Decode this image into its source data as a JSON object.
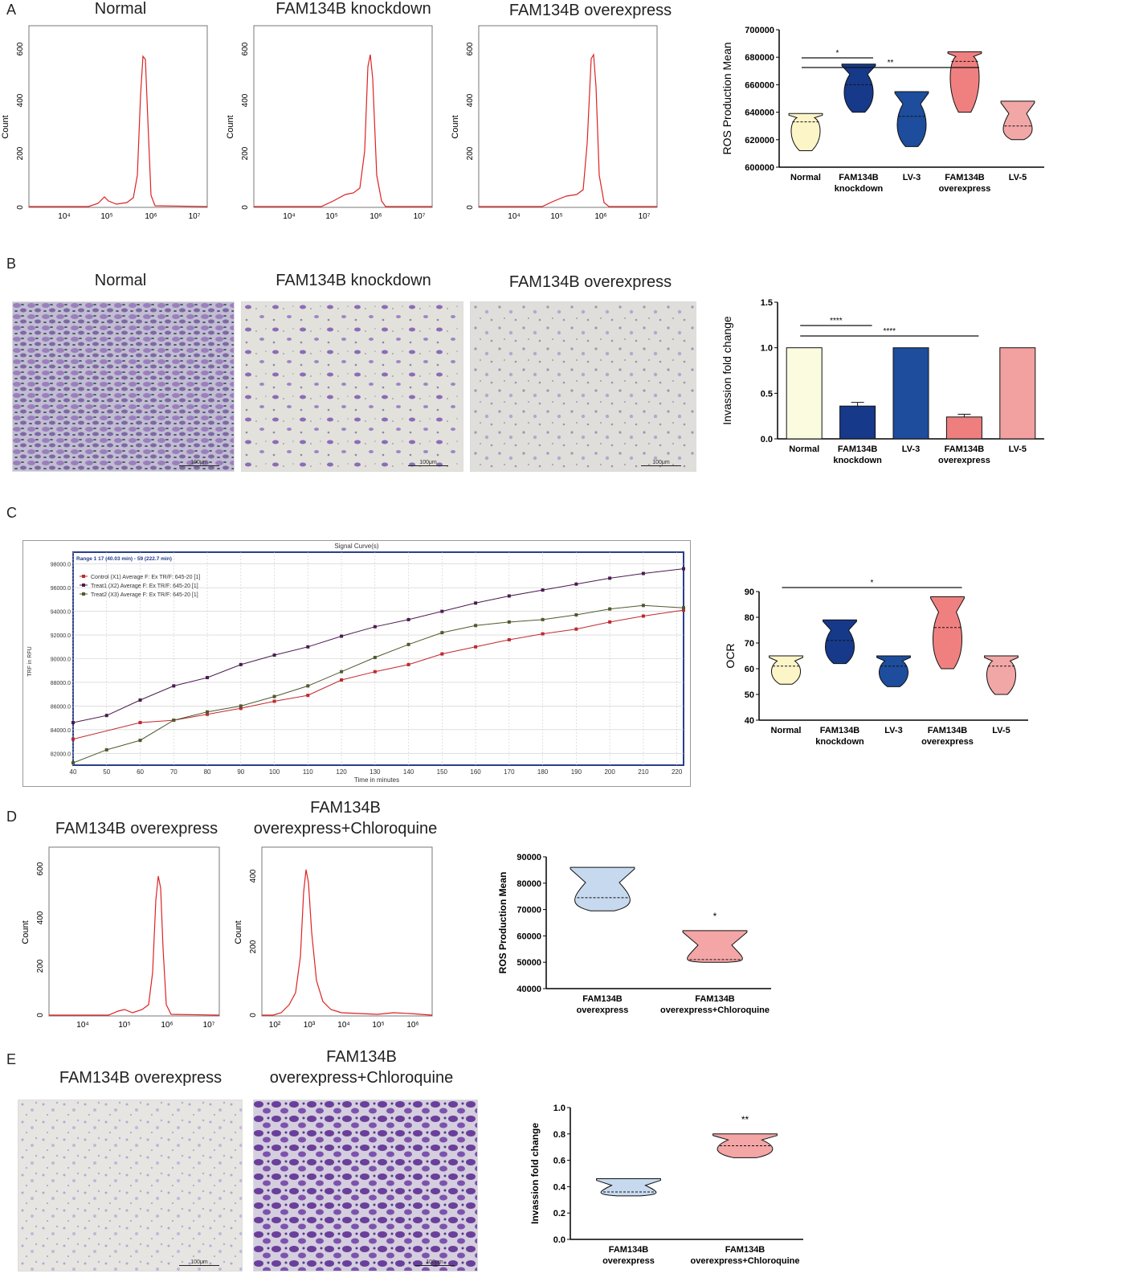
{
  "figure": {
    "panels": {
      "A": {
        "letter": "A",
        "histograms": [
          {
            "title": "Normal",
            "ylabel": "Count",
            "yticks": [
              "0",
              "200",
              "400",
              "600"
            ],
            "xticks": [
              "10⁴",
              "10⁵",
              "10⁶",
              "10⁷"
            ]
          },
          {
            "title": "FAM134B knockdown",
            "ylabel": "Count",
            "yticks": [
              "0",
              "200",
              "400",
              "600"
            ],
            "xticks": [
              "10⁴",
              "10⁵",
              "10⁶",
              "10⁷"
            ]
          },
          {
            "title": "FAM134B overexpress",
            "ylabel": "Count",
            "yticks": [
              "0",
              "200",
              "400",
              "600"
            ],
            "xticks": [
              "10⁴",
              "10⁵",
              "10⁶",
              "10⁷"
            ]
          }
        ]
      },
      "B": {
        "letter": "B",
        "images": [
          {
            "title": "Normal",
            "scale": "100μm"
          },
          {
            "title": "FAM134B knockdown",
            "scale": "100μm"
          },
          {
            "title": "FAM134B overexpress",
            "scale": "100μm"
          }
        ]
      },
      "C": {
        "letter": "C",
        "signal": {
          "title": "Signal Curve(s)",
          "range_label": "Range 1 17 (40.03 min) - 59 (222.7 min)",
          "legend": [
            "Control (X1) Average F: Ex TR/F: 645-20 [1]",
            "Treat1 (X2) Average F: Ex TR/F: 645-20 [1]",
            "Treat2 (X3) Average F: Ex TR/F: 645-20 [1]"
          ],
          "xlabel": "Time in minutes",
          "ylabel": "TRF in RFU",
          "xticks": [
            "40",
            "50",
            "60",
            "70",
            "80",
            "90",
            "100",
            "110",
            "120",
            "130",
            "140",
            "150",
            "160",
            "170",
            "180",
            "190",
            "200",
            "210",
            "220"
          ],
          "yticks": [
            "82000.0",
            "84000.0",
            "86000.0",
            "88000.0",
            "90000.0",
            "92000.0",
            "94000.0",
            "96000.0",
            "98000.0"
          ],
          "colors": {
            "control": "#c0282f",
            "treat1": "#4a1b4f",
            "treat2": "#4e5a2e"
          }
        }
      },
      "D": {
        "letter": "D",
        "histograms": [
          {
            "title": "FAM134B overexpress",
            "ylabel": "Count",
            "yticks": [
              "0",
              "200",
              "400",
              "600"
            ],
            "xticks": [
              "10⁴",
              "10⁵",
              "10⁶",
              "10⁷"
            ]
          },
          {
            "title": "FAM134B overexpress+Chloroquine",
            "ylabel": "Count",
            "yticks": [
              "0",
              "200",
              "400"
            ],
            "xticks": [
              "10²",
              "10³",
              "10⁴",
              "10⁵",
              "10⁶"
            ]
          }
        ]
      },
      "E": {
        "letter": "E",
        "images": [
          {
            "title": "FAM134B overexpress",
            "scale": "100μm"
          },
          {
            "title": "FAM134B overexpress+Chloroquine",
            "scale": "100μm"
          }
        ]
      }
    }
  },
  "chart_data": [
    {
      "id": "A-ros",
      "type": "violin",
      "ylabel": "ROS Production Mean",
      "ylim": [
        600000,
        700000
      ],
      "yticks": [
        "600000",
        "620000",
        "640000",
        "660000",
        "680000",
        "700000"
      ],
      "categories": [
        "Normal",
        "FAM134B knockdown",
        "LV-3",
        "FAM134B overexpress",
        "LV-5"
      ],
      "min": [
        612000,
        640000,
        615000,
        640000,
        620000
      ],
      "max": [
        639000,
        675000,
        655000,
        684000,
        648000
      ],
      "median": [
        633000,
        660000,
        637000,
        677000,
        630000
      ],
      "colors": [
        "#fbf5c8",
        "#17398a",
        "#1d4d9c",
        "#f08080",
        "#f2a7a7"
      ],
      "significance": [
        {
          "from": 0,
          "to": 1,
          "label": "*"
        },
        {
          "from": 0,
          "to": 3,
          "label": "**"
        }
      ]
    },
    {
      "id": "B-invasion",
      "type": "bar",
      "ylabel": "Invassion fold change",
      "ylim": [
        0,
        1.5
      ],
      "yticks": [
        "0.0",
        "0.5",
        "1.0",
        "1.5"
      ],
      "categories": [
        "Normal",
        "FAM134B knockdown",
        "LV-3",
        "FAM134B overexpress",
        "LV-5"
      ],
      "values": [
        1.0,
        0.36,
        1.0,
        0.24,
        1.0
      ],
      "errors": [
        0,
        0.04,
        0,
        0.03,
        0
      ],
      "colors": [
        "#fbfbe0",
        "#17398a",
        "#1d4d9c",
        "#ef7f7f",
        "#f2a0a0"
      ],
      "significance": [
        {
          "from": 0,
          "to": 1,
          "label": "****"
        },
        {
          "from": 0,
          "to": 3,
          "label": "****"
        }
      ]
    },
    {
      "id": "C-signal",
      "type": "line",
      "xlim": [
        40,
        222
      ],
      "ylim": [
        81000,
        99000
      ],
      "series": [
        {
          "name": "Control (X1) Average F: Ex TR/F: 645-20 [1]",
          "x": [
            40,
            60,
            70,
            80,
            90,
            100,
            110,
            120,
            130,
            140,
            150,
            160,
            170,
            180,
            190,
            200,
            210,
            222
          ],
          "values": [
            83200,
            84600,
            84800,
            85300,
            85800,
            86400,
            86900,
            88200,
            88900,
            89500,
            90400,
            91000,
            91600,
            92100,
            92500,
            93100,
            93600,
            94100
          ]
        },
        {
          "name": "Treat1 (X2) Average F: Ex TR/F: 645-20 [1]",
          "x": [
            40,
            50,
            60,
            70,
            80,
            90,
            100,
            110,
            120,
            130,
            140,
            150,
            160,
            170,
            180,
            190,
            200,
            210,
            222
          ],
          "values": [
            84600,
            85200,
            86500,
            87700,
            88400,
            89500,
            90300,
            91000,
            91900,
            92700,
            93300,
            94000,
            94700,
            95300,
            95800,
            96300,
            96800,
            97200,
            97600
          ]
        },
        {
          "name": "Treat2 (X3) Average F: Ex TR/F: 645-20 [1]",
          "x": [
            40,
            50,
            60,
            70,
            80,
            90,
            100,
            110,
            120,
            130,
            140,
            150,
            160,
            170,
            180,
            190,
            200,
            210,
            222
          ],
          "values": [
            81200,
            82300,
            83100,
            84800,
            85500,
            86000,
            86800,
            87700,
            88900,
            90100,
            91200,
            92200,
            92800,
            93100,
            93300,
            93700,
            94200,
            94500,
            94300
          ]
        }
      ]
    },
    {
      "id": "C-ocr",
      "type": "violin",
      "ylabel": "OCR",
      "ylim": [
        40,
        90
      ],
      "yticks": [
        "40",
        "50",
        "60",
        "70",
        "80",
        "90"
      ],
      "categories": [
        "Normal",
        "FAM134B knockdown",
        "LV-3",
        "FAM134B overexpress",
        "LV-5"
      ],
      "min": [
        54,
        62,
        53,
        60,
        50
      ],
      "max": [
        65,
        79,
        65,
        88,
        65
      ],
      "median": [
        61,
        71,
        61,
        76,
        61
      ],
      "colors": [
        "#fbf5c8",
        "#17398a",
        "#1d4d9c",
        "#f08080",
        "#f2a7a7"
      ],
      "significance": [
        {
          "from": 0,
          "to": 3,
          "label": "*"
        }
      ]
    },
    {
      "id": "D-ros",
      "type": "violin",
      "ylabel": "ROS Production Mean",
      "ylim": [
        40000,
        90000
      ],
      "yticks": [
        "40000",
        "50000",
        "60000",
        "70000",
        "80000",
        "90000"
      ],
      "categories": [
        "FAM134B overexpress",
        "FAM134B overexpress+Chloroquine"
      ],
      "min": [
        69500,
        50000
      ],
      "max": [
        86000,
        62000
      ],
      "median": [
        74500,
        51000
      ],
      "colors": [
        "#c6d9ef",
        "#f4a5a5"
      ],
      "significance": [
        {
          "at": 1,
          "label": "*"
        }
      ]
    },
    {
      "id": "E-invasion",
      "type": "violin",
      "ylabel": "Invassion fold change",
      "ylim": [
        0,
        1.0
      ],
      "yticks": [
        "0.0",
        "0.2",
        "0.4",
        "0.6",
        "0.8",
        "1.0"
      ],
      "categories": [
        "FAM134B overexpress",
        "FAM134B overexpress+Chloroquine"
      ],
      "min": [
        0.33,
        0.62
      ],
      "max": [
        0.46,
        0.8
      ],
      "median": [
        0.36,
        0.71
      ],
      "colors": [
        "#c6d9ef",
        "#f4a5a5"
      ],
      "significance": [
        {
          "at": 1,
          "label": "**"
        }
      ]
    }
  ]
}
